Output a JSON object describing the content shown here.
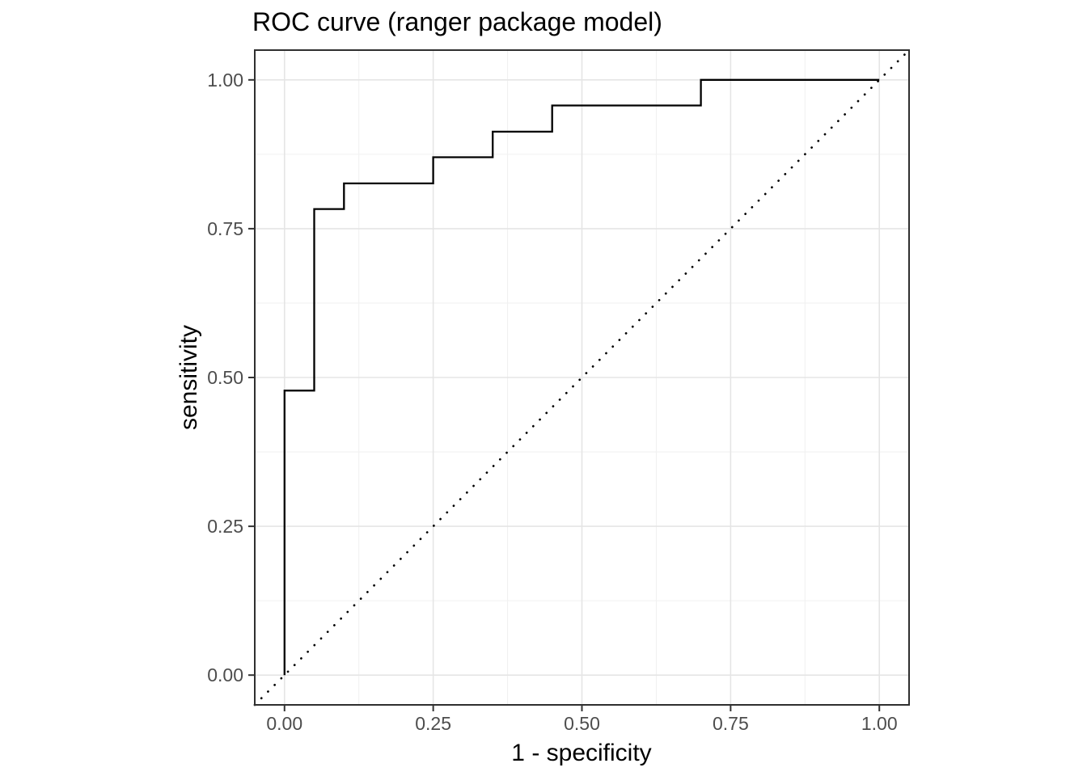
{
  "figure": {
    "title": "ROC curve (ranger package model)",
    "xlabel": "1 - specificity",
    "ylabel": "sensitivity"
  },
  "chart_data": {
    "type": "line",
    "subtype": "roc-step-curve",
    "title": "ROC curve (ranger package model)",
    "xlabel": "1 - specificity",
    "ylabel": "sensitivity",
    "xlim": [
      -0.05,
      1.05
    ],
    "ylim": [
      -0.05,
      1.05
    ],
    "x_ticks": [
      0,
      0.25,
      0.5,
      0.75,
      1
    ],
    "x_tick_labels": [
      "0.00",
      "0.25",
      "0.50",
      "0.75",
      "1.00"
    ],
    "y_ticks": [
      0,
      0.25,
      0.5,
      0.75,
      1
    ],
    "y_tick_labels": [
      "0.00",
      "0.25",
      "0.50",
      "0.75",
      "1.00"
    ],
    "minor_grid_positions": [
      0.125,
      0.375,
      0.625,
      0.875
    ],
    "grid": "major+minor",
    "legend": "none",
    "series": [
      {
        "name": "ROC step curve",
        "style": "solid",
        "x": [
          0,
          0,
          0.05,
          0.05,
          0.1,
          0.1,
          0.25,
          0.25,
          0.35,
          0.35,
          0.45,
          0.45,
          0.7,
          0.7,
          1.0
        ],
        "y": [
          0,
          0.478,
          0.478,
          0.783,
          0.783,
          0.826,
          0.826,
          0.87,
          0.87,
          0.913,
          0.913,
          0.957,
          0.957,
          1.0,
          1.0
        ]
      },
      {
        "name": "chance diagonal",
        "style": "dotted",
        "x": [
          -0.05,
          1.05
        ],
        "y": [
          -0.05,
          1.05
        ]
      }
    ],
    "colors": {
      "curve": "#000000",
      "diagonal": "#000000",
      "grid_major": "#e5e5e5",
      "grid_minor": "#f1f1f1",
      "panel_border": "#2f2f2f",
      "tick": "#333333",
      "tick_label": "#4d4d4d",
      "title": "#000000",
      "axis_title": "#000000",
      "background": "#ffffff"
    }
  }
}
